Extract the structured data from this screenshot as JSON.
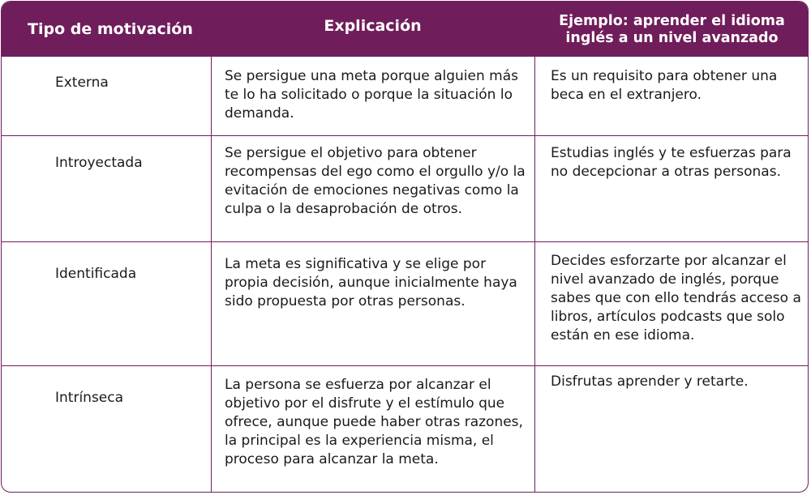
{
  "header": {
    "col1": "Tipo de motivación",
    "col2": "Explicación",
    "col3_line1": "Ejemplo: aprender el idioma",
    "col3_line2": "inglés a un nivel avanzado"
  },
  "rows": [
    {
      "tipo": "Externa",
      "explicacion": "Se persigue una meta porque alguien más te lo ha solicitado o porque la situación lo demanda.",
      "ejemplo": "Es un requisito para obtener una beca en el extranjero."
    },
    {
      "tipo": "Introyectada",
      "explicacion": "Se persigue el objetivo para obtener recompensas del ego como el orgullo y/o la evitación de emociones negativas como la culpa o la desaprobación de otros.",
      "ejemplo": "Estudias inglés y te esfuerzas para no decepcionar a otras personas."
    },
    {
      "tipo": "Identificada",
      "explicacion": "La meta es significativa y se elige por propia decisión, aunque inicialmente haya sido propuesta por otras personas.",
      "ejemplo": "Decides esforzarte por alcanzar el nivel avanzado de inglés, porque sabes que con ello tendrás acceso a libros, artículos podcasts que solo están en ese idioma."
    },
    {
      "tipo": "Intrínseca",
      "explicacion": "La persona se esfuerza por alcanzar el objetivo por el disfrute y el estímulo que ofrece, aunque puede haber otras razones, la principal es la experiencia misma, el proceso para alcanzar la meta.",
      "ejemplo": "Disfrutas aprender y retarte."
    }
  ]
}
